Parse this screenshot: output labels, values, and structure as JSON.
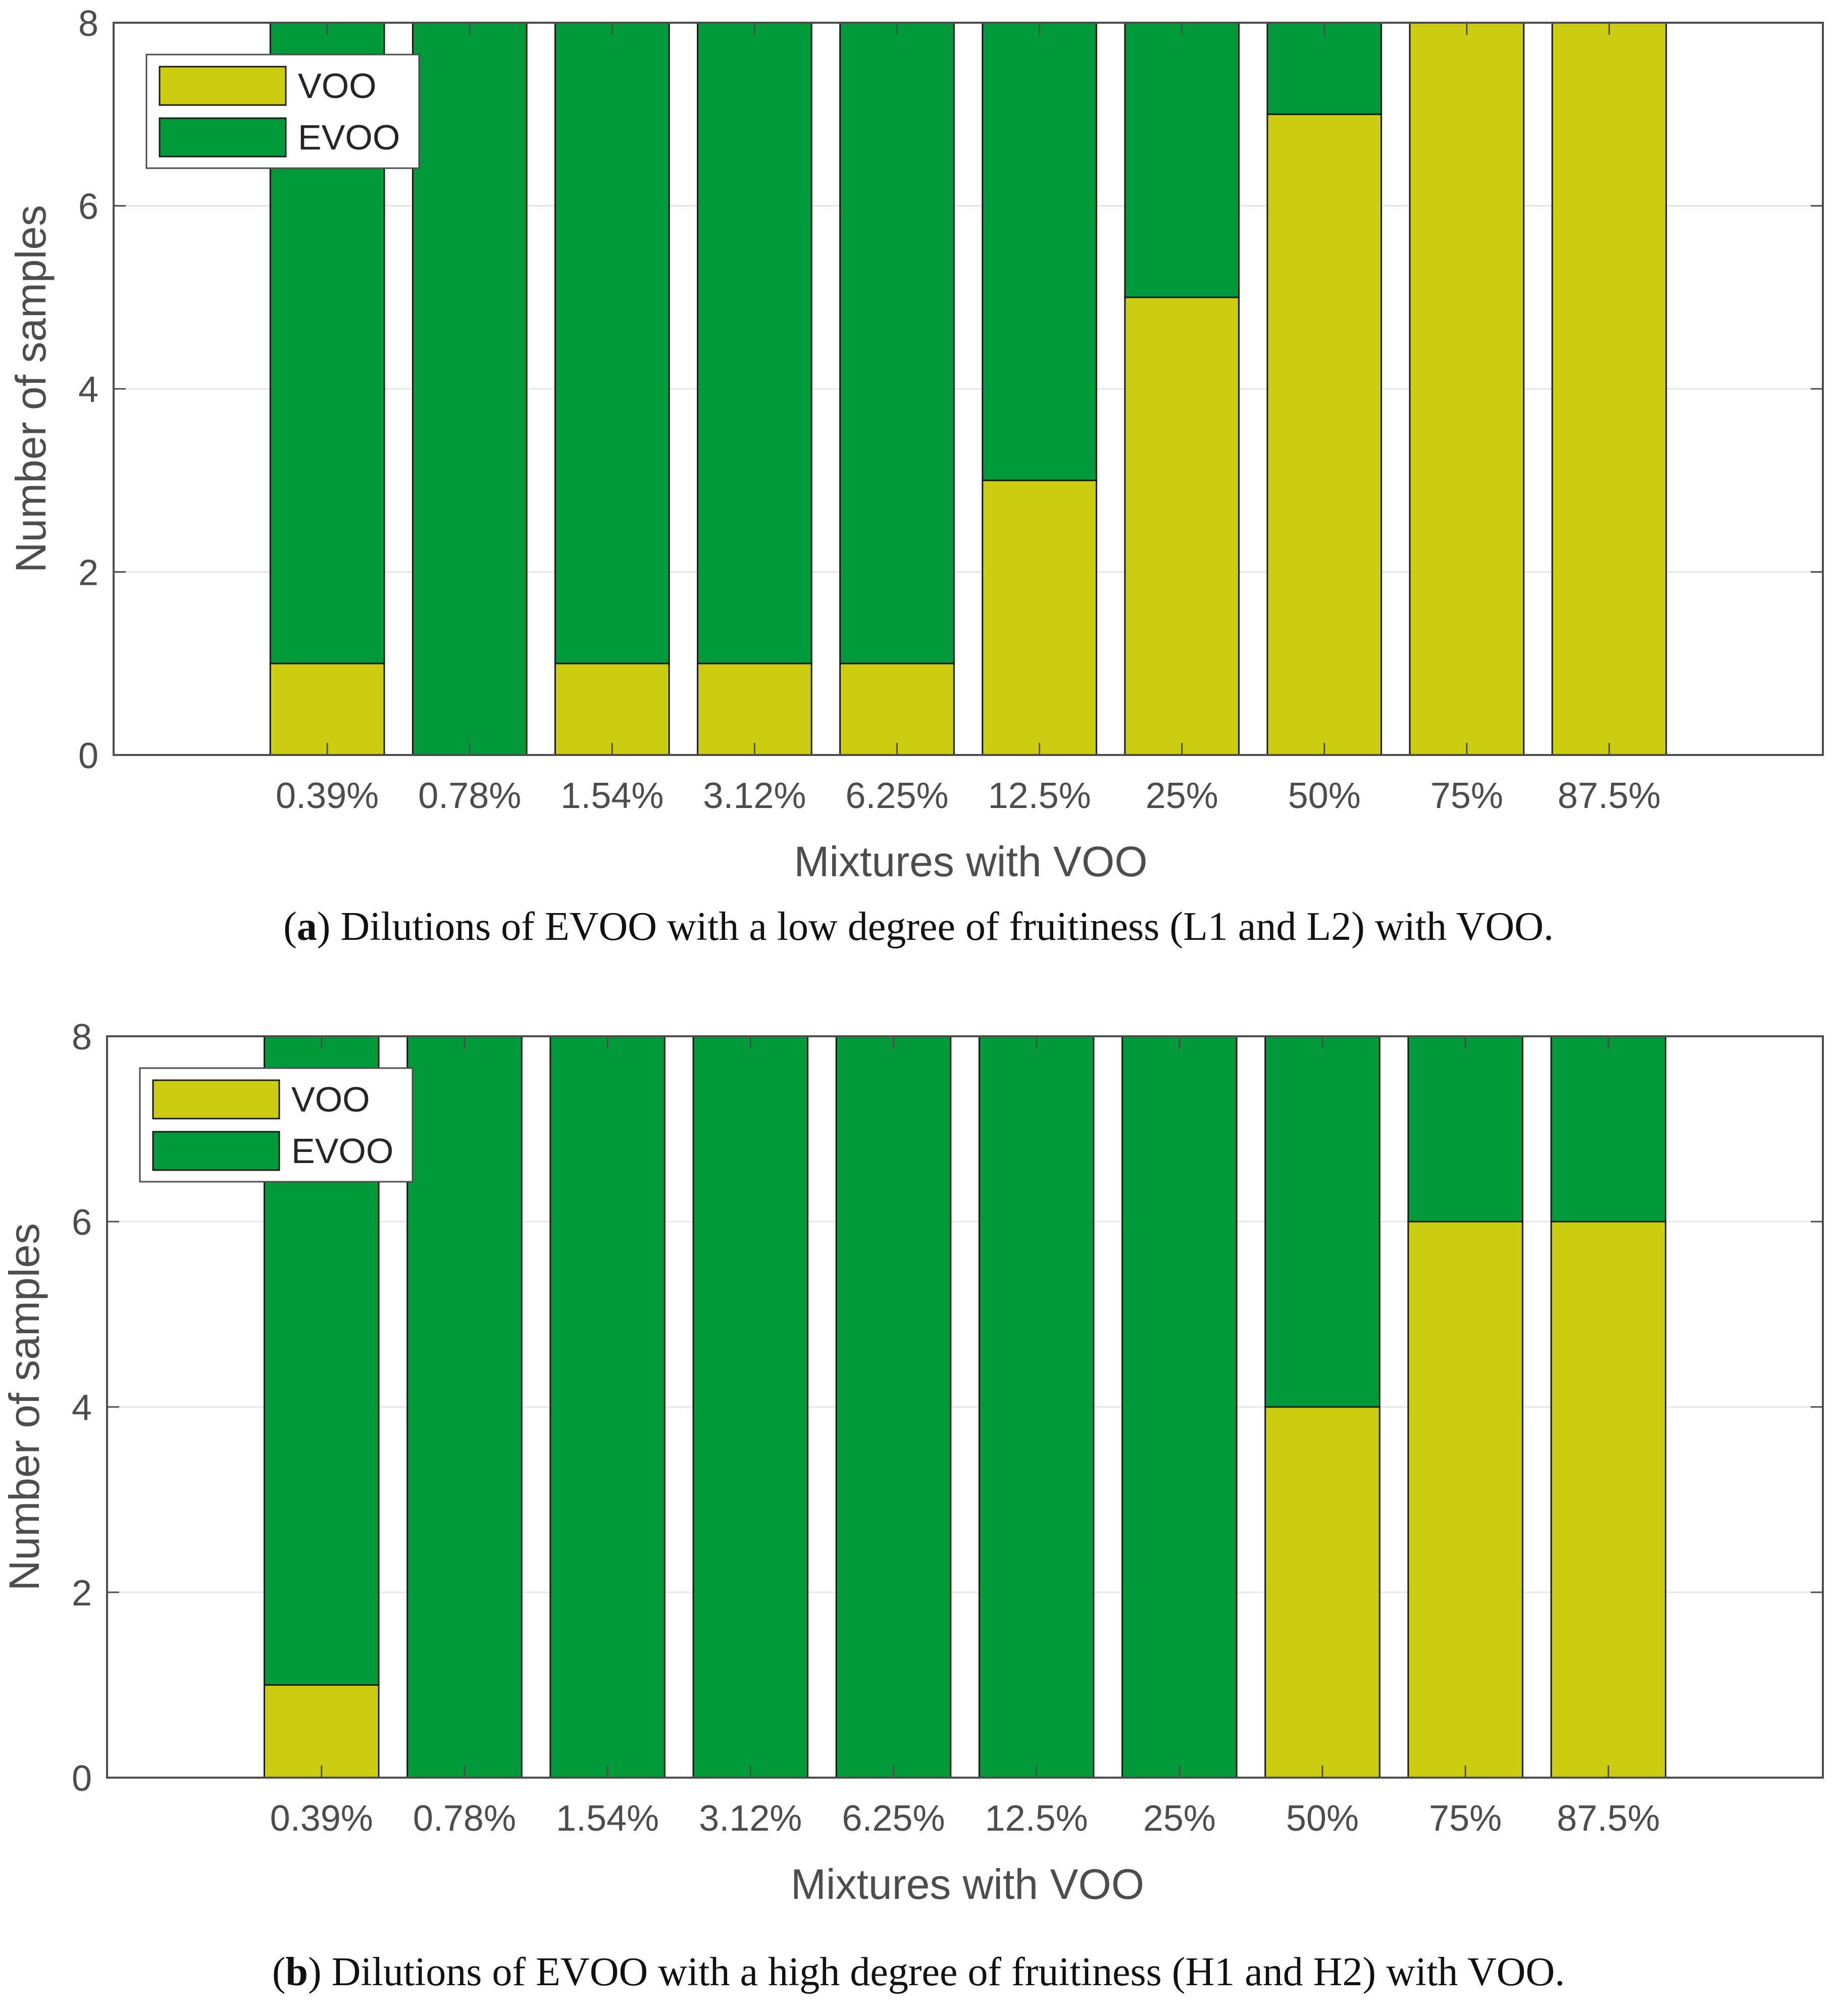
{
  "colors": {
    "voo": "#cccc10",
    "evoo": "#009a3a",
    "axis": "#4d4d4d",
    "grid": "#e6e6e6"
  },
  "chart_data": [
    {
      "type": "bar",
      "stacked": true,
      "panel_label": "a",
      "caption": "Dilutions of EVOO with a low degree of fruitiness (L1 and L2) with VOO.",
      "xlabel": "Mixtures with VOO",
      "ylabel": "Number of samples",
      "ylim": [
        0,
        8
      ],
      "yticks": [
        0,
        2,
        4,
        6,
        8
      ],
      "grid": true,
      "legend_position": "top-left",
      "categories": [
        "0.39%",
        "0.78%",
        "1.54%",
        "3.12%",
        "6.25%",
        "12.5%",
        "25%",
        "50%",
        "75%",
        "87.5%"
      ],
      "series": [
        {
          "name": "VOO",
          "values": [
            1,
            0,
            1,
            1,
            1,
            3,
            5,
            7,
            8,
            8
          ]
        },
        {
          "name": "EVOO",
          "values": [
            7,
            8,
            7,
            7,
            7,
            5,
            3,
            1,
            0,
            0
          ]
        }
      ]
    },
    {
      "type": "bar",
      "stacked": true,
      "panel_label": "b",
      "caption": "Dilutions of EVOO with a high degree of fruitiness (H1 and H2) with VOO.",
      "xlabel": "Mixtures with VOO",
      "ylabel": "Number of samples",
      "ylim": [
        0,
        8
      ],
      "yticks": [
        0,
        2,
        4,
        6,
        8
      ],
      "grid": true,
      "legend_position": "top-left",
      "categories": [
        "0.39%",
        "0.78%",
        "1.54%",
        "3.12%",
        "6.25%",
        "12.5%",
        "25%",
        "50%",
        "75%",
        "87.5%"
      ],
      "series": [
        {
          "name": "VOO",
          "values": [
            1,
            0,
            0,
            0,
            0,
            0,
            0,
            4,
            6,
            6
          ]
        },
        {
          "name": "EVOO",
          "values": [
            7,
            8,
            8,
            8,
            8,
            8,
            8,
            4,
            2,
            2
          ]
        }
      ]
    }
  ]
}
